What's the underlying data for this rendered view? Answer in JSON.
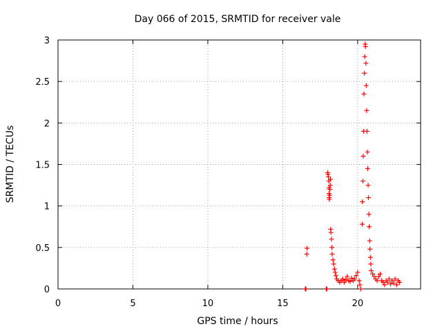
{
  "chart_data": {
    "type": "scatter",
    "title": "Day 066 of 2015, SRMTID for receiver vale",
    "xlabel": "GPS time / hours",
    "ylabel": "SRMTID / TECUs",
    "xlim": [
      0,
      24.2
    ],
    "ylim": [
      0,
      3
    ],
    "xticks": [
      0,
      5,
      10,
      15,
      20
    ],
    "yticks": [
      0,
      0.5,
      1,
      1.5,
      2,
      2.5,
      3
    ],
    "grid": true,
    "marker": "+",
    "series_color": "#ff0000",
    "series": [
      {
        "name": "SRMTID",
        "points": [
          [
            16.5,
            0.0
          ],
          [
            16.55,
            0.0
          ],
          [
            16.6,
            0.42
          ],
          [
            16.62,
            0.49
          ],
          [
            17.9,
            0.0
          ],
          [
            17.95,
            0.0
          ],
          [
            18.0,
            1.4
          ],
          [
            18.02,
            1.38
          ],
          [
            18.05,
            1.35
          ],
          [
            18.07,
            1.3
          ],
          [
            18.08,
            1.22
          ],
          [
            18.09,
            1.15
          ],
          [
            18.1,
            1.1
          ],
          [
            18.11,
            1.08
          ],
          [
            18.13,
            1.13
          ],
          [
            18.15,
            1.2
          ],
          [
            18.17,
            1.25
          ],
          [
            18.18,
            1.32
          ],
          [
            18.2,
            0.72
          ],
          [
            18.22,
            0.68
          ],
          [
            18.25,
            0.6
          ],
          [
            18.28,
            0.5
          ],
          [
            18.3,
            0.42
          ],
          [
            18.35,
            0.35
          ],
          [
            18.4,
            0.3
          ],
          [
            18.45,
            0.24
          ],
          [
            18.5,
            0.2
          ],
          [
            18.55,
            0.16
          ],
          [
            18.6,
            0.12
          ],
          [
            18.7,
            0.1
          ],
          [
            18.8,
            0.08
          ],
          [
            18.9,
            0.1
          ],
          [
            19.0,
            0.12
          ],
          [
            19.1,
            0.08
          ],
          [
            19.2,
            0.11
          ],
          [
            19.3,
            0.15
          ],
          [
            19.4,
            0.1
          ],
          [
            19.5,
            0.09
          ],
          [
            19.6,
            0.13
          ],
          [
            19.7,
            0.1
          ],
          [
            19.8,
            0.12
          ],
          [
            19.9,
            0.16
          ],
          [
            20.0,
            0.2
          ],
          [
            20.1,
            0.1
          ],
          [
            20.15,
            0.05
          ],
          [
            20.2,
            0.0
          ],
          [
            20.3,
            0.78
          ],
          [
            20.32,
            1.05
          ],
          [
            20.35,
            1.3
          ],
          [
            20.37,
            1.6
          ],
          [
            20.4,
            1.9
          ],
          [
            20.42,
            2.35
          ],
          [
            20.45,
            2.6
          ],
          [
            20.47,
            2.8
          ],
          [
            20.5,
            2.95
          ],
          [
            20.52,
            2.92
          ],
          [
            20.55,
            2.72
          ],
          [
            20.57,
            2.45
          ],
          [
            20.6,
            2.15
          ],
          [
            20.62,
            1.9
          ],
          [
            20.65,
            1.65
          ],
          [
            20.67,
            1.45
          ],
          [
            20.7,
            1.25
          ],
          [
            20.72,
            1.1
          ],
          [
            20.75,
            0.9
          ],
          [
            20.77,
            0.75
          ],
          [
            20.8,
            0.58
          ],
          [
            20.82,
            0.48
          ],
          [
            20.85,
            0.38
          ],
          [
            20.88,
            0.3
          ],
          [
            20.9,
            0.22
          ],
          [
            21.0,
            0.18
          ],
          [
            21.1,
            0.15
          ],
          [
            21.2,
            0.12
          ],
          [
            21.3,
            0.1
          ],
          [
            21.4,
            0.15
          ],
          [
            21.5,
            0.18
          ],
          [
            21.6,
            0.1
          ],
          [
            21.7,
            0.08
          ],
          [
            21.8,
            0.05
          ],
          [
            21.9,
            0.1
          ],
          [
            22.0,
            0.08
          ],
          [
            22.1,
            0.12
          ],
          [
            22.2,
            0.06
          ],
          [
            22.3,
            0.1
          ],
          [
            22.4,
            0.07
          ],
          [
            22.5,
            0.12
          ],
          [
            22.6,
            0.05
          ],
          [
            22.7,
            0.1
          ],
          [
            22.8,
            0.08
          ]
        ]
      }
    ]
  }
}
